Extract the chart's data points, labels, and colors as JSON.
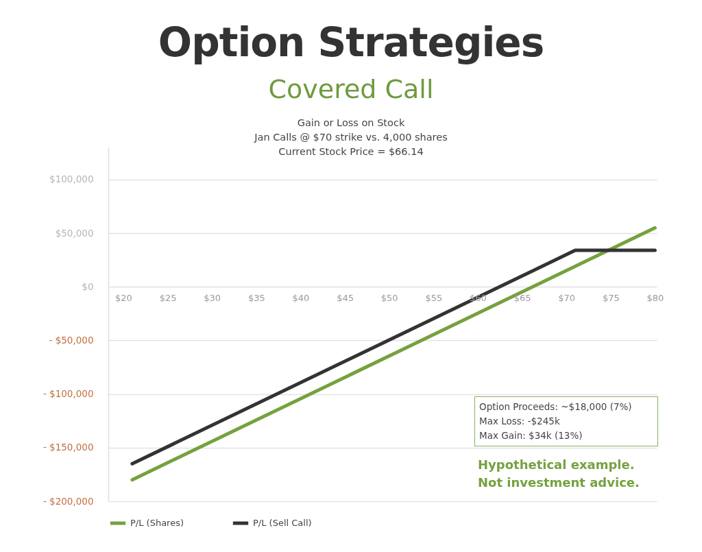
{
  "chart_data": {
    "type": "line",
    "title": "Option Strategies",
    "subtitle": "Covered Call",
    "annotations": [
      "Gain or Loss on Stock",
      "Jan Calls @ $70 strike vs. 4,000 shares",
      "Current Stock Price = $66.14",
      "Option Proceeds: ~$18,000 (7%)",
      "Max Loss: -$245k",
      "Max Gain: $34k (13%)",
      "Hypothetical example.",
      "Not investment advice."
    ],
    "series": [
      {
        "name": "P/L (Shares)",
        "color": "#76a13f",
        "x": [
          21,
          80
        ],
        "values": [
          -180000,
          55000
        ]
      },
      {
        "name": "P/L (Sell Call)",
        "color": "#333333",
        "x": [
          21,
          71,
          80
        ],
        "values": [
          -165000,
          34000,
          34000
        ]
      }
    ],
    "xlim": [
      18.3,
      80.2
    ],
    "ylim": [
      -200000,
      130000
    ],
    "xticks": [
      {
        "value": 20,
        "label": "$20"
      },
      {
        "value": 25,
        "label": "$25"
      },
      {
        "value": 30,
        "label": "$30"
      },
      {
        "value": 35,
        "label": "$35"
      },
      {
        "value": 40,
        "label": "$40"
      },
      {
        "value": 45,
        "label": "$45"
      },
      {
        "value": 50,
        "label": "$50"
      },
      {
        "value": 55,
        "label": "$55"
      },
      {
        "value": 60,
        "label": "$60"
      },
      {
        "value": 65,
        "label": "$65"
      },
      {
        "value": 70,
        "label": "$70"
      },
      {
        "value": 75,
        "label": "$75"
      },
      {
        "value": 80,
        "label": "$80"
      }
    ],
    "yticks": [
      {
        "value": 100000,
        "label": "$100,000"
      },
      {
        "value": 50000,
        "label": "$50,000"
      },
      {
        "value": 0,
        "label": "$0"
      },
      {
        "value": -50000,
        "label": "- $50,000"
      },
      {
        "value": -100000,
        "label": "- $100,000"
      },
      {
        "value": -150000,
        "label": "- $150,000"
      },
      {
        "value": -200000,
        "label": "- $200,000"
      }
    ],
    "grid": "y",
    "legend": "bottom"
  }
}
